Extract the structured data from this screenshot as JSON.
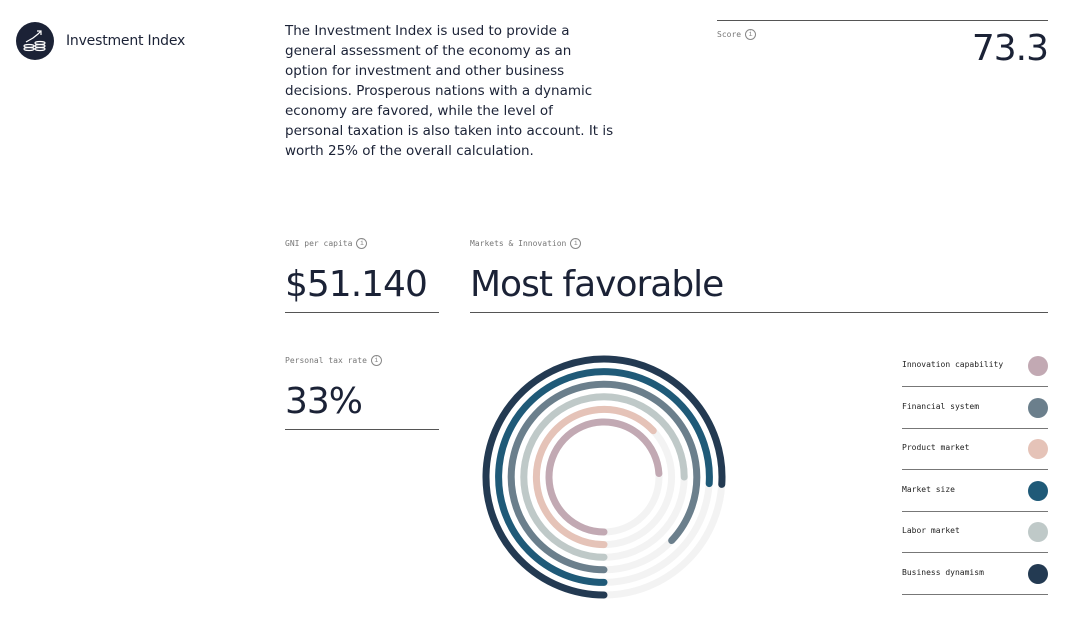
{
  "header": {
    "title": "Investment Index",
    "logo_icon": "rising-coins-icon"
  },
  "description": "The Investment Index is used to provide a general assessment of the economy as an option for investment and other business decisions. Prosperous nations with a dynamic economy are favored, while the level of personal taxation is also taken into account. It is worth 25% of the overall calculation.",
  "score": {
    "label": "Score",
    "value": "73.3"
  },
  "gni": {
    "label": "GNI per capita",
    "value": "$51.140"
  },
  "markets": {
    "label": "Markets & Innovation",
    "value": "Most favorable"
  },
  "tax": {
    "label": "Personal tax rate",
    "value": "33%"
  },
  "info_glyph": "i",
  "chart_data": {
    "type": "radial-bar",
    "range": [
      0,
      100
    ],
    "series": [
      {
        "name": "Innovation capability",
        "value": 74,
        "color": "#c2a9b3"
      },
      {
        "name": "Financial system",
        "value": 87,
        "color": "#6b7f8c"
      },
      {
        "name": "Product market",
        "value": 63,
        "color": "#e5c3b8"
      },
      {
        "name": "Market size",
        "value": 76,
        "color": "#1f5a78"
      },
      {
        "name": "Labor market",
        "value": 75,
        "color": "#bfc9c8"
      },
      {
        "name": "Business dynamism",
        "value": 76,
        "color": "#233a52"
      }
    ],
    "ring_order_inner_to_outer": [
      "Innovation capability",
      "Product market",
      "Labor market",
      "Financial system",
      "Market size",
      "Business dynamism"
    ],
    "track_color": "#f3f3f3"
  }
}
